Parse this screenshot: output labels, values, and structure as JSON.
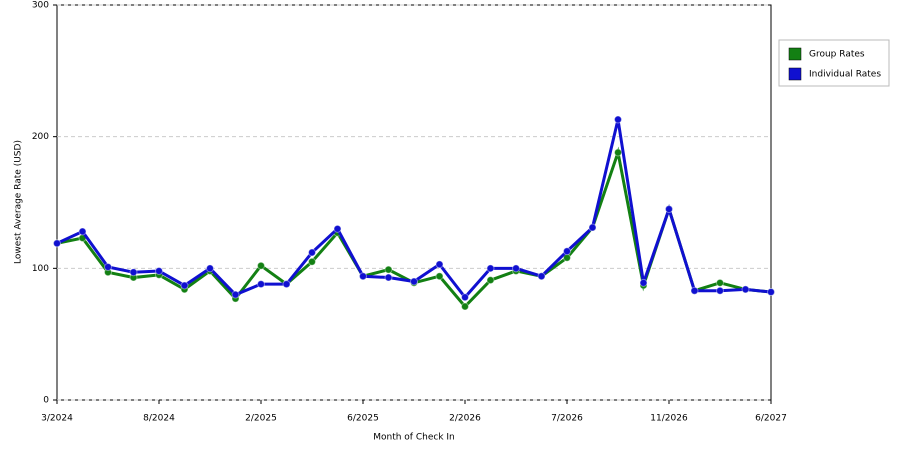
{
  "chart_data": {
    "type": "line",
    "x_label": "Month of Check In",
    "y_label": "Lowest Average Rate (USD)",
    "categories": [
      "3/2024",
      null,
      null,
      null,
      "8/2024",
      null,
      null,
      null,
      "2/2025",
      null,
      null,
      null,
      "6/2025",
      null,
      null,
      null,
      "2/2026",
      null,
      null,
      null,
      "7/2026",
      null,
      null,
      null,
      "11/2026",
      null,
      null,
      null,
      "6/2027"
    ],
    "series": [
      {
        "name": "Group Rates",
        "color": "#138013",
        "values": [
          119,
          123,
          97,
          93,
          95,
          84,
          98,
          77,
          102,
          88,
          105,
          127,
          94,
          99,
          89,
          94,
          71,
          91,
          98,
          94,
          108,
          131,
          188,
          87,
          145,
          83,
          89,
          84,
          82
        ]
      },
      {
        "name": "Individual Rates",
        "color": "#1010d0",
        "values": [
          119,
          128,
          101,
          97,
          98,
          87,
          100,
          80,
          88,
          88,
          112,
          130,
          94,
          93,
          90,
          103,
          78,
          100,
          100,
          94,
          113,
          131,
          213,
          89,
          145,
          83,
          83,
          84,
          82
        ]
      }
    ],
    "ylim": [
      0,
      300
    ],
    "yticks": [
      0,
      100,
      200,
      300
    ],
    "grid": true,
    "legend": "right"
  }
}
